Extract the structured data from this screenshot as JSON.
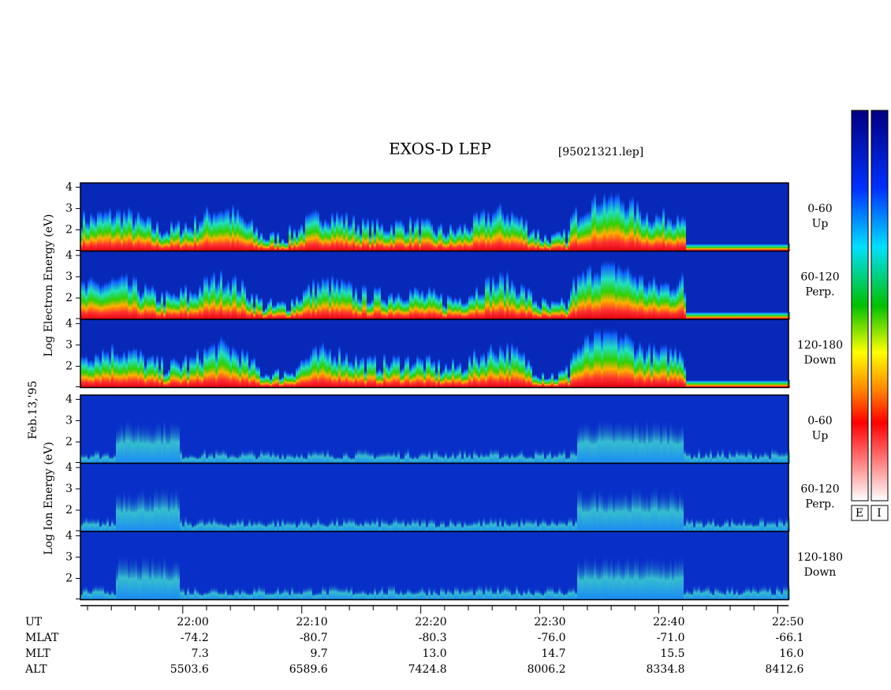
{
  "header": {
    "title": "EXOS-D LEP",
    "file": "[95021321.lep]"
  },
  "date": "Feb.13,'95",
  "electron": {
    "axis_label": "Log Electron Energy (eV)",
    "panels": [
      {
        "pitch": "0-60",
        "direction": "Up"
      },
      {
        "pitch": "60-120",
        "direction": "Perp."
      },
      {
        "pitch": "120-180",
        "direction": "Down"
      }
    ]
  },
  "ion": {
    "axis_label": "Log Ion Energy (eV)",
    "panels": [
      {
        "pitch": "0-60",
        "direction": "Up"
      },
      {
        "pitch": "60-120",
        "direction": "Perp."
      },
      {
        "pitch": "120-180",
        "direction": "Down"
      }
    ]
  },
  "energy_axis": {
    "ylim": [
      1,
      4.2
    ],
    "yticks": [
      2,
      3,
      4
    ]
  },
  "time_axis": {
    "xlim": [
      1311.4,
      1370.9
    ],
    "xticks": [
      {
        "value": 1320,
        "label": "22:00"
      },
      {
        "value": 1330,
        "label": "22:10"
      },
      {
        "value": 1340,
        "label": "22:20"
      },
      {
        "value": 1350,
        "label": "22:30"
      },
      {
        "value": 1360,
        "label": "22:40"
      },
      {
        "value": 1370,
        "label": "22:50"
      }
    ],
    "minor_ticks": [
      1312,
      1314,
      1316,
      1318,
      1322,
      1324,
      1326,
      1328,
      1332,
      1334,
      1336,
      1338,
      1342,
      1344,
      1346,
      1348,
      1352,
      1354,
      1356,
      1358,
      1362,
      1364,
      1366,
      1368,
      1370
    ]
  },
  "ephemeris": {
    "rows": [
      {
        "label": "UT"
      },
      {
        "label": "MLAT",
        "values": [
          "-74.2",
          "-80.7",
          "-80.3",
          "-76.0",
          "-71.0",
          "-66.1"
        ]
      },
      {
        "label": "MLT",
        "values": [
          "7.3",
          "9.7",
          "13.0",
          "14.7",
          "15.5",
          "16.0"
        ]
      },
      {
        "label": "ALT",
        "values": [
          "5503.6",
          "6589.6",
          "7424.8",
          "8006.2",
          "8334.8",
          "8412.6"
        ]
      }
    ]
  },
  "colorbars": [
    "E",
    "I"
  ]
}
